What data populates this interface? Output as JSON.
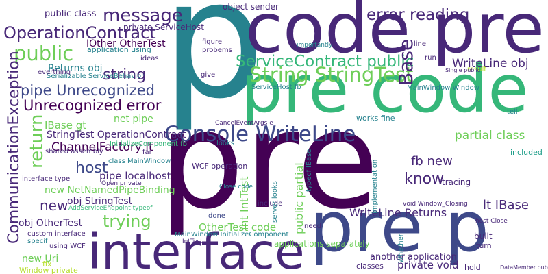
{
  "words": [
    "p",
    "pre",
    "code pre",
    "pre code",
    "pre p",
    "interface",
    "Console WriteLine",
    "String StringTest",
    "ServiceContract public",
    "OperationContract",
    "public",
    "message",
    "error reading",
    "Base",
    "WriteLine obj",
    "pipe Unrecognized",
    "Unrecognized error",
    "string",
    "Returns obj",
    "IOther OtherTest",
    "public class",
    "CommunicationException",
    "return",
    "IBase gt",
    "net pipe",
    "ChannelFactory lt",
    "StringTest OperationContract",
    "host",
    "pipe localhost",
    "class MainWindow",
    "new NetNamedPipeBinding",
    "new",
    "obj StringTest",
    "obj OtherTest",
    "trying",
    "new Uri",
    "fix",
    "Window private",
    "WCF operation",
    "know",
    "fb new",
    "partial class",
    "lt IBase",
    "WriteLine Returns",
    "OtherTest code",
    "int IntTest",
    "public partial",
    "private void",
    "another application",
    "applications separately",
    "works fine",
    "tracing",
    "included",
    "object sender",
    "private ServiceHost",
    "application using",
    "Serializable ServiceBehavior",
    "everthing",
    "ideas",
    "figure",
    "probems",
    "give",
    "line",
    "run",
    "result",
    "tell",
    "looks",
    "Close code",
    "include",
    "done",
    "need",
    "implementation",
    "Whether",
    "built",
    "turn",
    "hold",
    "classes",
    "specif",
    "custom interface",
    "interface type",
    "using WCF",
    "shared assembly",
    "far",
    "host Close",
    "MainWindow InitializeComponent",
    "AddServiceEndpoint typeof",
    "InitializeComponent fb",
    "ServiceHost fb",
    "MainWindow Window",
    "CancelEventArgs e",
    "importantly",
    "server looks",
    "typeof IBase",
    "Open private",
    "void Window_Closing",
    "Single public",
    "DataMember public",
    "IntTest"
  ]
}
